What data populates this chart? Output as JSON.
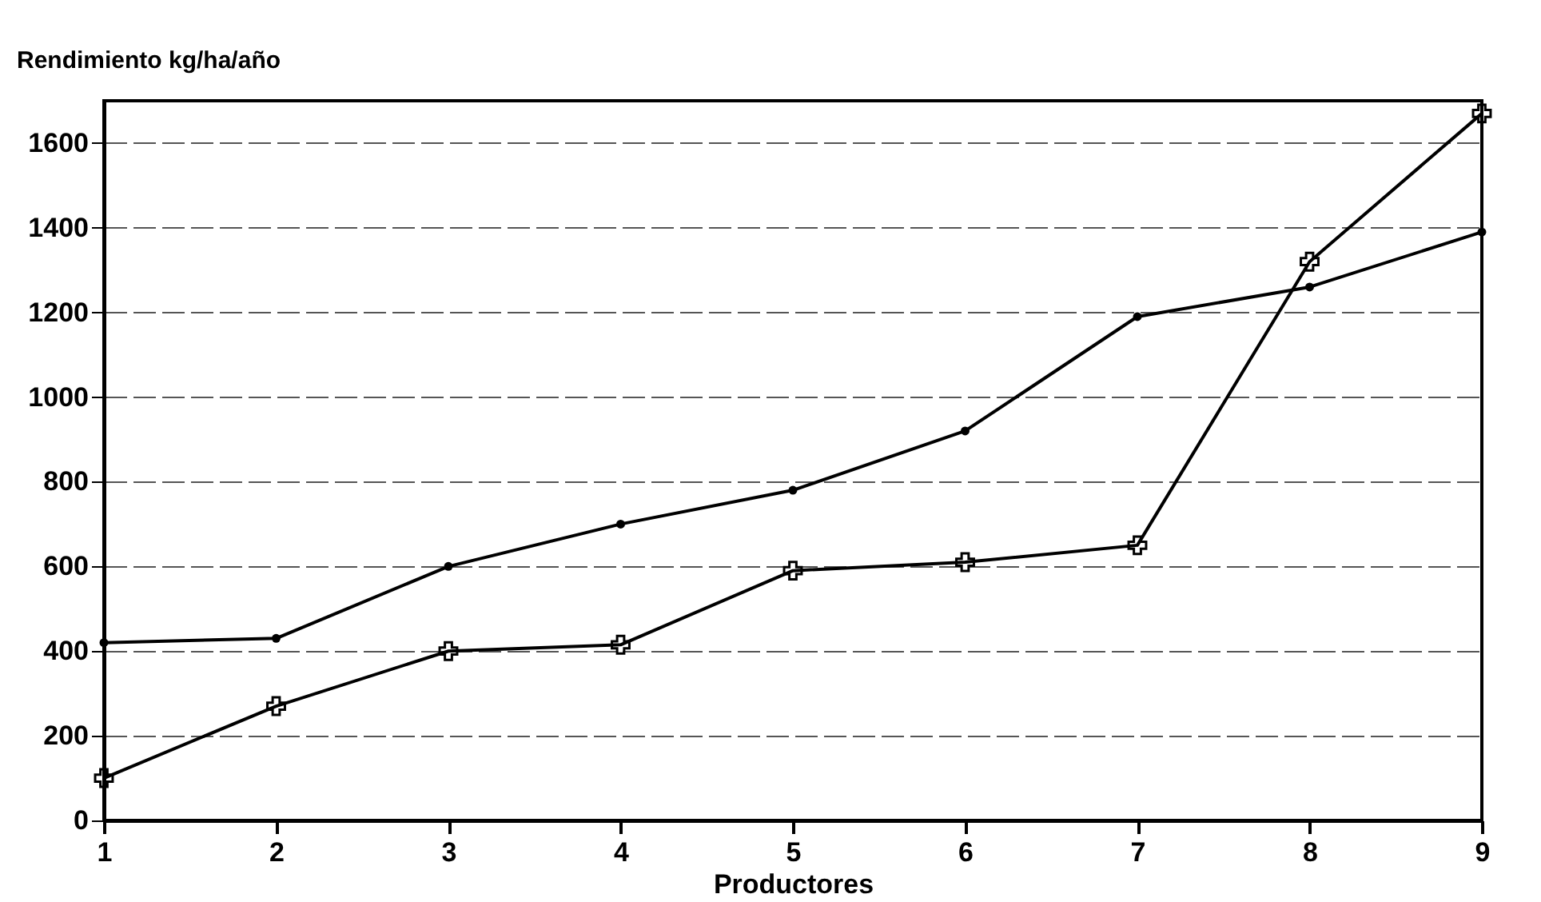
{
  "chart_data": {
    "type": "line",
    "xlabel": "Productores",
    "ylabel": "Rendimiento kg/ha/año",
    "x": [
      1,
      2,
      3,
      4,
      5,
      6,
      7,
      8,
      9
    ],
    "series": [
      {
        "color": "#000000",
        "marker": "circle",
        "values": [
          420,
          430,
          600,
          700,
          780,
          920,
          1190,
          1260,
          1390
        ]
      },
      {
        "color": "#000000",
        "marker": "cross",
        "values": [
          100,
          270,
          400,
          415,
          590,
          610,
          650,
          1320,
          1670
        ]
      }
    ],
    "xlim": [
      1,
      9
    ],
    "xticks": [
      1,
      2,
      3,
      4,
      5,
      6,
      7,
      8,
      9
    ],
    "ylim": [
      0,
      1700
    ],
    "yticks": [
      0,
      200,
      400,
      600,
      800,
      1000,
      1200,
      1400,
      1600
    ],
    "grid": "y"
  }
}
